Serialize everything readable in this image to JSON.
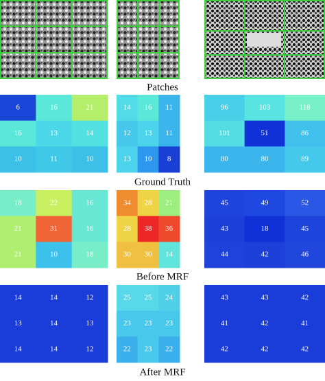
{
  "patches": {
    "caption": "Patches"
  },
  "sections": [
    {
      "caption": "Ground Truth",
      "grids": [
        {
          "cells": [
            [
              6,
              16,
              21
            ],
            [
              16,
              13,
              14
            ],
            [
              10,
              11,
              10
            ]
          ],
          "colors": [
            [
              "#1a46d8",
              "#5ce8d8",
              "#b4ee6a"
            ],
            [
              "#5ce8d8",
              "#4cd8e8",
              "#52e0e0"
            ],
            [
              "#3cc0e8",
              "#40c8e8",
              "#3cc0e8"
            ]
          ]
        },
        {
          "cells": [
            [
              14,
              16,
              11
            ],
            [
              12,
              13,
              11
            ],
            [
              13,
              10,
              8
            ]
          ],
          "colors": [
            [
              "#52dce8",
              "#5ce8d8",
              "#3cb4ec"
            ],
            [
              "#46c8ec",
              "#4cd4ec",
              "#3cb4ec"
            ],
            [
              "#4cd4ec",
              "#2e98f0",
              "#1a3fd4"
            ]
          ]
        },
        {
          "cells": [
            [
              96,
              103,
              118
            ],
            [
              101,
              51,
              86
            ],
            [
              80,
              80,
              89
            ]
          ],
          "colors": [
            [
              "#48d0e8",
              "#58e4e0",
              "#78f0c8"
            ],
            [
              "#54dce4",
              "#1030d8",
              "#40c0ec"
            ],
            [
              "#3cb4ec",
              "#3cb4ec",
              "#44c8ec"
            ]
          ]
        }
      ]
    },
    {
      "caption": "Before MRF",
      "grids": [
        {
          "cells": [
            [
              18,
              22,
              16
            ],
            [
              21,
              31,
              16
            ],
            [
              21,
              10,
              18
            ]
          ],
          "colors": [
            [
              "#78eec8",
              "#c8f060",
              "#68e8d4"
            ],
            [
              "#b0ee70",
              "#f06438",
              "#68e8d4"
            ],
            [
              "#b0ee70",
              "#3cc0ec",
              "#78eec8"
            ]
          ]
        },
        {
          "cells": [
            [
              34,
              28,
              21
            ],
            [
              28,
              38,
              36
            ],
            [
              30,
              30,
              14
            ]
          ],
          "colors": [
            [
              "#f08c30",
              "#f0d448",
              "#9cee80"
            ],
            [
              "#f0d448",
              "#ee2828",
              "#f04a2c"
            ],
            [
              "#f0c040",
              "#f0c040",
              "#60e4dc"
            ]
          ]
        },
        {
          "cells": [
            [
              45,
              49,
              52
            ],
            [
              43,
              18,
              45
            ],
            [
              44,
              42,
              46
            ]
          ],
          "colors": [
            [
              "#1e44dc",
              "#1e48e0",
              "#2a58e4"
            ],
            [
              "#1c40d8",
              "#1030d8",
              "#1e44dc"
            ],
            [
              "#1e42da",
              "#1c40d8",
              "#2046dc"
            ]
          ]
        }
      ]
    },
    {
      "caption": "After MRF",
      "grids": [
        {
          "cells": [
            [
              14,
              14,
              12
            ],
            [
              13,
              14,
              13
            ],
            [
              14,
              14,
              12
            ]
          ],
          "colors": [
            [
              "#1a3cd8",
              "#1a3cd8",
              "#1a3cd8"
            ],
            [
              "#1a3cd8",
              "#1a3cd8",
              "#1a3cd8"
            ],
            [
              "#1a3cd8",
              "#1a3cd8",
              "#1a3cd8"
            ]
          ]
        },
        {
          "cells": [
            [
              25,
              25,
              24
            ],
            [
              23,
              23,
              23
            ],
            [
              22,
              23,
              22
            ]
          ],
          "colors": [
            [
              "#58d8e8",
              "#58d8e8",
              "#50d0e8"
            ],
            [
              "#48c8ec",
              "#48c8ec",
              "#48c8ec"
            ],
            [
              "#3cb0ec",
              "#48c8ec",
              "#3cb0ec"
            ]
          ]
        },
        {
          "cells": [
            [
              43,
              43,
              42
            ],
            [
              41,
              42,
              41
            ],
            [
              42,
              42,
              42
            ]
          ],
          "colors": [
            [
              "#1a3cd8",
              "#1a3cd8",
              "#1a3cd8"
            ],
            [
              "#1a3cd8",
              "#1a3cd8",
              "#1a3cd8"
            ],
            [
              "#1a3cd8",
              "#1a3cd8",
              "#1a3cd8"
            ]
          ]
        }
      ]
    }
  ]
}
